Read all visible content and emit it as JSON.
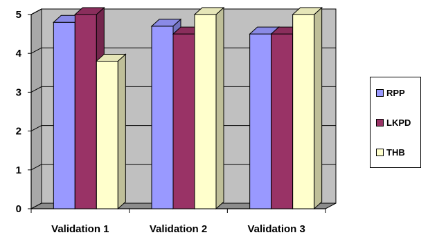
{
  "chart_data": {
    "type": "bar",
    "categories": [
      "Validation 1",
      "Validation 2",
      "Validation 3"
    ],
    "series": [
      {
        "name": "RPP",
        "values": [
          4.8,
          4.7,
          4.5
        ],
        "color": "#9999ff"
      },
      {
        "name": "LKPD",
        "values": [
          5.0,
          4.5,
          4.5
        ],
        "color": "#993366"
      },
      {
        "name": "THB",
        "values": [
          3.8,
          5.0,
          5.0
        ],
        "color": "#ffffcc"
      }
    ],
    "title": "",
    "xlabel": "",
    "ylabel": "",
    "ylim": [
      0,
      5
    ],
    "yticks": [
      "0",
      "1",
      "2",
      "3",
      "4",
      "5"
    ],
    "grid": true,
    "legend": "right",
    "style": "3d-clustered-column",
    "plot_wall_color": "#c0c0c0"
  }
}
